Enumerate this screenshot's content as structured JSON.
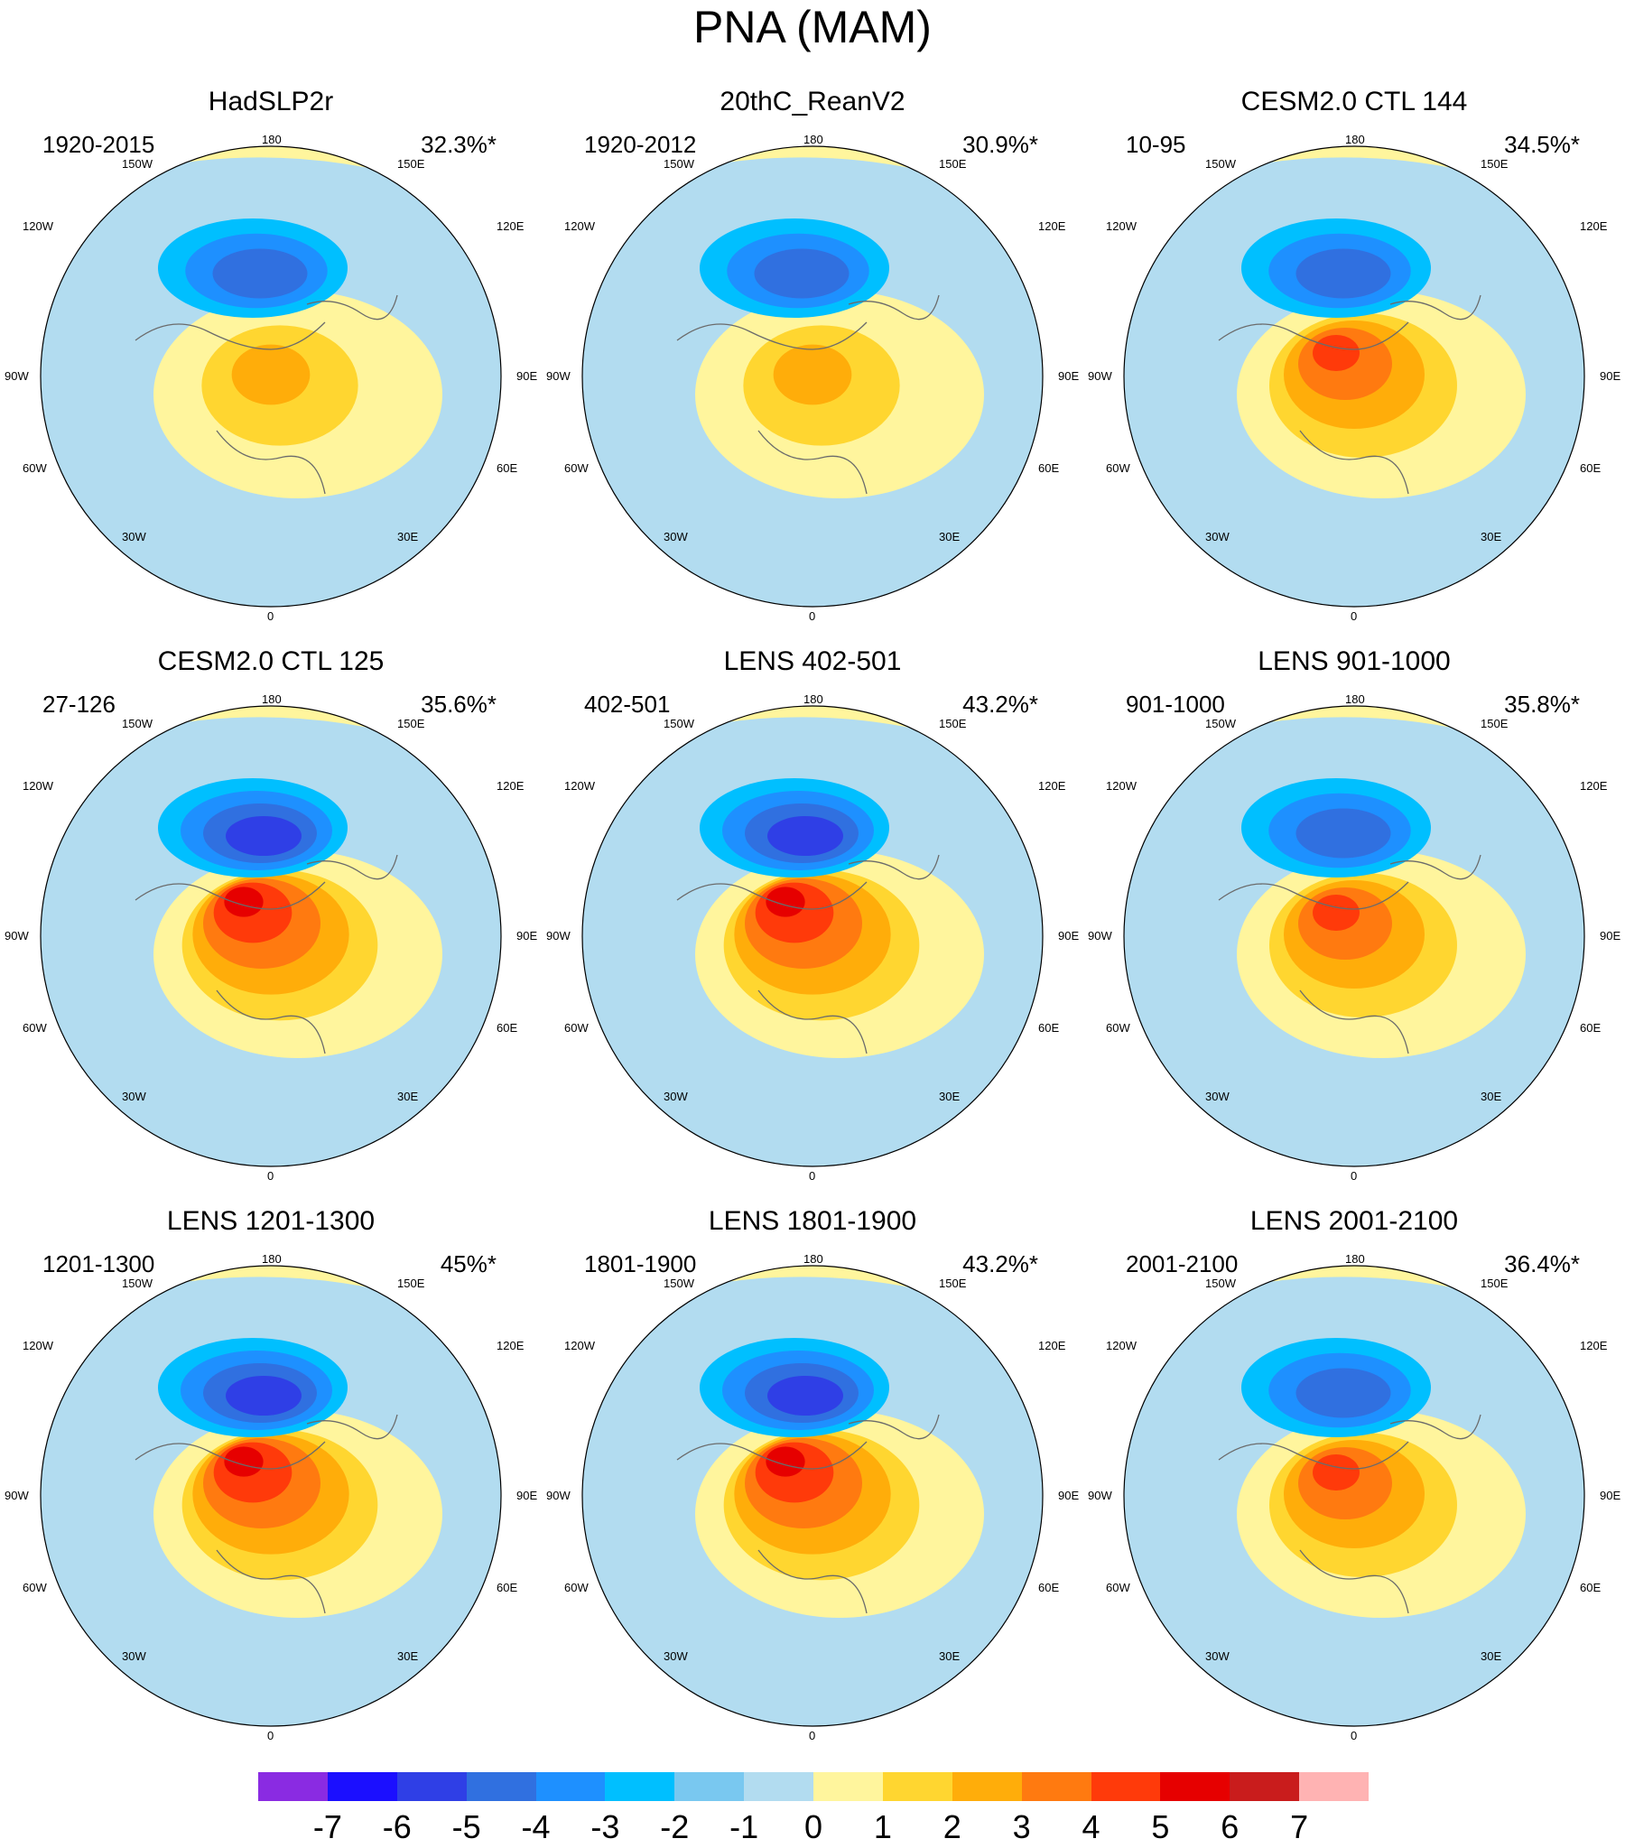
{
  "figure": {
    "title": "PNA (MAM)"
  },
  "lon_labels": {
    "n": "180",
    "nw": "150W",
    "ne": "150E",
    "wnw": "120W",
    "ene": "120E",
    "w": "90W",
    "e": "90E",
    "wsw": "60W",
    "ese": "60E",
    "sw": "30W",
    "se": "30E",
    "s": "0"
  },
  "panels": [
    {
      "title": "HadSLP2r",
      "period": "1920-2015",
      "variance": "32.3%*",
      "neg_max": -4,
      "pos_max": 2
    },
    {
      "title": "20thC_ReanV2",
      "period": "1920-2012",
      "variance": "30.9%*",
      "neg_max": -4,
      "pos_max": 2
    },
    {
      "title": "CESM2.0 CTL 144",
      "period": "10-95",
      "variance": "34.5%*",
      "neg_max": -4,
      "pos_max": 4
    },
    {
      "title": "CESM2.0 CTL 125",
      "period": "27-126",
      "variance": "35.6%*",
      "neg_max": -5,
      "pos_max": 5
    },
    {
      "title": "LENS 402-501",
      "period": "402-501",
      "variance": "43.2%*",
      "neg_max": -5,
      "pos_max": 5
    },
    {
      "title": "LENS 901-1000",
      "period": "901-1000",
      "variance": "35.8%*",
      "neg_max": -4,
      "pos_max": 4
    },
    {
      "title": "LENS 1201-1300",
      "period": "1201-1300",
      "variance": "45%*",
      "neg_max": -5,
      "pos_max": 5
    },
    {
      "title": "LENS 1801-1900",
      "period": "1801-1900",
      "variance": "43.2%*",
      "neg_max": -5,
      "pos_max": 5
    },
    {
      "title": "LENS 2001-2100",
      "period": "2001-2100",
      "variance": "36.4%*",
      "neg_max": -4,
      "pos_max": 4
    }
  ],
  "colorbar": {
    "labels": [
      "-7",
      "-6",
      "-5",
      "-4",
      "-3",
      "-2",
      "-1",
      "0",
      "1",
      "2",
      "3",
      "4",
      "5",
      "6",
      "7"
    ],
    "colors": [
      "#8a2be2",
      "#1b0fff",
      "#2f3fe6",
      "#3070e0",
      "#1e90ff",
      "#00bfff",
      "#79c8f0",
      "#b2dcf0",
      "#fff59d",
      "#ffd630",
      "#ffad0a",
      "#ff7a10",
      "#ff3a0a",
      "#e60000",
      "#c91c1c",
      "#ffb3b3"
    ]
  }
}
